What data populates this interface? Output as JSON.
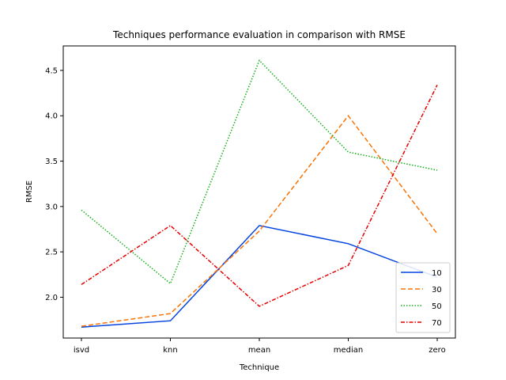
{
  "chart_data": {
    "type": "line",
    "title": "Techniques performance evaluation in comparison with RMSE",
    "xlabel": "Technique",
    "ylabel": "RMSE",
    "categories": [
      "isvd",
      "knn",
      "mean",
      "median",
      "zero"
    ],
    "ylim": [
      1.55,
      4.77
    ],
    "yticks": [
      2.0,
      2.5,
      3.0,
      3.5,
      4.0,
      4.5
    ],
    "ytick_labels": [
      "2.0",
      "2.5",
      "3.0",
      "3.5",
      "4.0",
      "4.5"
    ],
    "grid": false,
    "legend": "lower-right",
    "series": [
      {
        "name": "10",
        "color": "#0343df",
        "dash": "",
        "values": [
          1.67,
          1.74,
          2.79,
          2.59,
          2.22
        ]
      },
      {
        "name": "30",
        "color": "#f97306",
        "dash": "6 3",
        "values": [
          1.68,
          1.82,
          2.73,
          4.0,
          2.7
        ]
      },
      {
        "name": "50",
        "color": "#15b01a",
        "dash": "1.5 2",
        "values": [
          2.96,
          2.15,
          4.61,
          3.6,
          3.4
        ]
      },
      {
        "name": "70",
        "color": "#e50000",
        "dash": "5 2 1.5 2",
        "values": [
          2.14,
          2.79,
          1.9,
          2.35,
          4.34
        ]
      }
    ]
  }
}
